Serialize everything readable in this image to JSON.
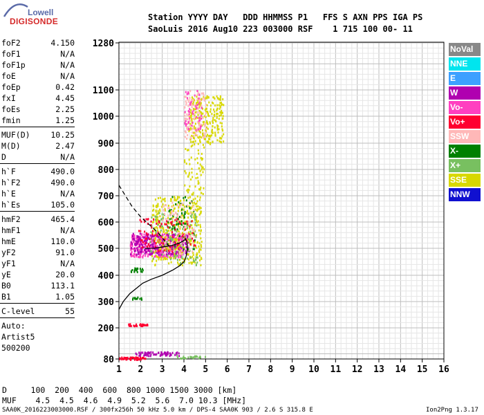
{
  "logo": {
    "top": "Lowell",
    "bottom": "DIGISONDE"
  },
  "header": {
    "line1": "Station YYYY DAY   DDD HHMMSS P1   FFS S AXN PPS IGA PS",
    "line2": "SaoLuis 2016 Aug10 223 003000 RSF    1 715 100 00- 11"
  },
  "parameters": {
    "groups": [
      [
        {
          "name": "foF2",
          "value": "4.150"
        },
        {
          "name": "foF1",
          "value": "N/A"
        },
        {
          "name": "foF1p",
          "value": "N/A"
        },
        {
          "name": "foE",
          "value": "N/A"
        },
        {
          "name": "foEp",
          "value": "0.42"
        },
        {
          "name": "fxI",
          "value": "4.45"
        },
        {
          "name": "foEs",
          "value": "2.25"
        },
        {
          "name": "fmin",
          "value": "1.25"
        }
      ],
      [
        {
          "name": "MUF(D)",
          "value": "10.25"
        },
        {
          "name": "M(D)",
          "value": "2.47"
        },
        {
          "name": "D",
          "value": "N/A"
        }
      ],
      [
        {
          "name": "h`F",
          "value": "490.0"
        },
        {
          "name": "h`F2",
          "value": "490.0"
        },
        {
          "name": "h`E",
          "value": "N/A"
        },
        {
          "name": "h`Es",
          "value": "105.0"
        }
      ],
      [
        {
          "name": "hmF2",
          "value": "465.4"
        },
        {
          "name": "hmF1",
          "value": "N/A"
        },
        {
          "name": "hmE",
          "value": "110.0"
        },
        {
          "name": "yF2",
          "value": "91.0"
        },
        {
          "name": "yF1",
          "value": "N/A"
        },
        {
          "name": "yE",
          "value": "20.0"
        },
        {
          "name": "B0",
          "value": "113.1"
        },
        {
          "name": "B1",
          "value": "1.05"
        }
      ],
      [
        {
          "name": "C-level",
          "value": "55"
        }
      ]
    ],
    "auto_label": "Auto:",
    "auto_value": "Artist5",
    "auto_code": "500200"
  },
  "legend": [
    {
      "label": "NoVal",
      "color": "#888888"
    },
    {
      "label": "NNE",
      "color": "#00e5ee"
    },
    {
      "label": "E",
      "color": "#3ca0ff"
    },
    {
      "label": "W",
      "color": "#b000b0"
    },
    {
      "label": "Vo-",
      "color": "#ff40c0"
    },
    {
      "label": "Vo+",
      "color": "#ff0030"
    },
    {
      "label": "SSW",
      "color": "#ffb8b8"
    },
    {
      "label": "X-",
      "color": "#008000"
    },
    {
      "label": "X+",
      "color": "#78c060"
    },
    {
      "label": "SSE",
      "color": "#d8d800"
    },
    {
      "label": "NNW",
      "color": "#1010d0"
    }
  ],
  "footer": {
    "line1": "D     100  200  400  600  800 1000 1500 3000 [km]",
    "line2": "MUF    4.5  4.5  4.6  4.9  5.2  5.6  7.0 10.3 [MHz]",
    "line3": "SAA0K_2016223003000.RSF / 300fx256h 50 kHz 5.0 km / DPS-4 SAA0K 903 / 2.6 S 315.8 E",
    "version": "Ion2Png 1.3.17"
  },
  "chart_data": {
    "type": "scatter",
    "xlim": [
      1,
      16
    ],
    "ylim": [
      80,
      1280
    ],
    "x_ticks": [
      1,
      2,
      3,
      4,
      5,
      6,
      7,
      8,
      9,
      10,
      11,
      12,
      13,
      14,
      15,
      16
    ],
    "y_ticks": [
      80,
      200,
      300,
      400,
      500,
      600,
      700,
      800,
      900,
      1000,
      1100,
      1280
    ],
    "grid": true,
    "legend_position": "right",
    "clusters": [
      {
        "series": "Vo+",
        "x": [
          1.0,
          2.2
        ],
        "y": [
          80,
          90
        ],
        "n": 60
      },
      {
        "series": "W",
        "x": [
          1.7,
          3.8
        ],
        "y": [
          95,
          110
        ],
        "n": 70
      },
      {
        "series": "X+",
        "x": [
          3.6,
          5.0
        ],
        "y": [
          85,
          95
        ],
        "n": 25
      },
      {
        "series": "Vo+",
        "x": [
          1.4,
          2.3
        ],
        "y": [
          210,
          218
        ],
        "n": 30
      },
      {
        "series": "X-",
        "x": [
          1.6,
          2.1
        ],
        "y": [
          310,
          320
        ],
        "n": 12
      },
      {
        "series": "X-",
        "x": [
          1.5,
          2.1
        ],
        "y": [
          415,
          430
        ],
        "n": 20
      },
      {
        "series": "Vo-",
        "x": [
          1.5,
          4.0
        ],
        "y": [
          470,
          560
        ],
        "n": 420
      },
      {
        "series": "W",
        "x": [
          1.5,
          4.2
        ],
        "y": [
          480,
          560
        ],
        "n": 260
      },
      {
        "series": "SSE",
        "x": [
          2.5,
          4.8
        ],
        "y": [
          440,
          700
        ],
        "n": 380
      },
      {
        "series": "X+",
        "x": [
          2.4,
          4.6
        ],
        "y": [
          440,
          640
        ],
        "n": 120
      },
      {
        "series": "X-",
        "x": [
          3.2,
          4.5
        ],
        "y": [
          500,
          700
        ],
        "n": 60
      },
      {
        "series": "SSW",
        "x": [
          3.0,
          4.5
        ],
        "y": [
          480,
          680
        ],
        "n": 90
      },
      {
        "series": "Vo+",
        "x": [
          1.8,
          4.5
        ],
        "y": [
          490,
          620
        ],
        "n": 90
      },
      {
        "series": "SSE",
        "x": [
          4.2,
          5.8
        ],
        "y": [
          900,
          1080
        ],
        "n": 260
      },
      {
        "series": "SSW",
        "x": [
          4.0,
          5.0
        ],
        "y": [
          920,
          1100
        ],
        "n": 120
      },
      {
        "series": "Vo-",
        "x": [
          4.0,
          4.8
        ],
        "y": [
          950,
          1100
        ],
        "n": 50
      },
      {
        "series": "SSE",
        "x": [
          4.0,
          4.9
        ],
        "y": [
          700,
          900
        ],
        "n": 70
      }
    ],
    "trace": {
      "x": [
        1.0,
        1.2,
        1.5,
        1.8,
        2.1,
        2.5,
        3.0,
        3.5,
        3.8,
        4.0,
        4.1,
        4.15,
        4.15,
        4.05
      ],
      "y": [
        270,
        300,
        330,
        350,
        370,
        385,
        400,
        420,
        435,
        450,
        470,
        490,
        520,
        540
      ]
    },
    "dashed_trace": {
      "x": [
        1.0,
        1.3,
        1.6,
        2.0,
        2.4,
        2.8,
        3.1,
        3.3
      ],
      "y": [
        740,
        700,
        660,
        620,
        590,
        560,
        530,
        510
      ]
    },
    "curve_segment": {
      "x": [
        2.2,
        2.6,
        3.0,
        3.4,
        3.8,
        4.1
      ],
      "y": [
        500,
        500,
        505,
        510,
        520,
        535
      ]
    }
  }
}
